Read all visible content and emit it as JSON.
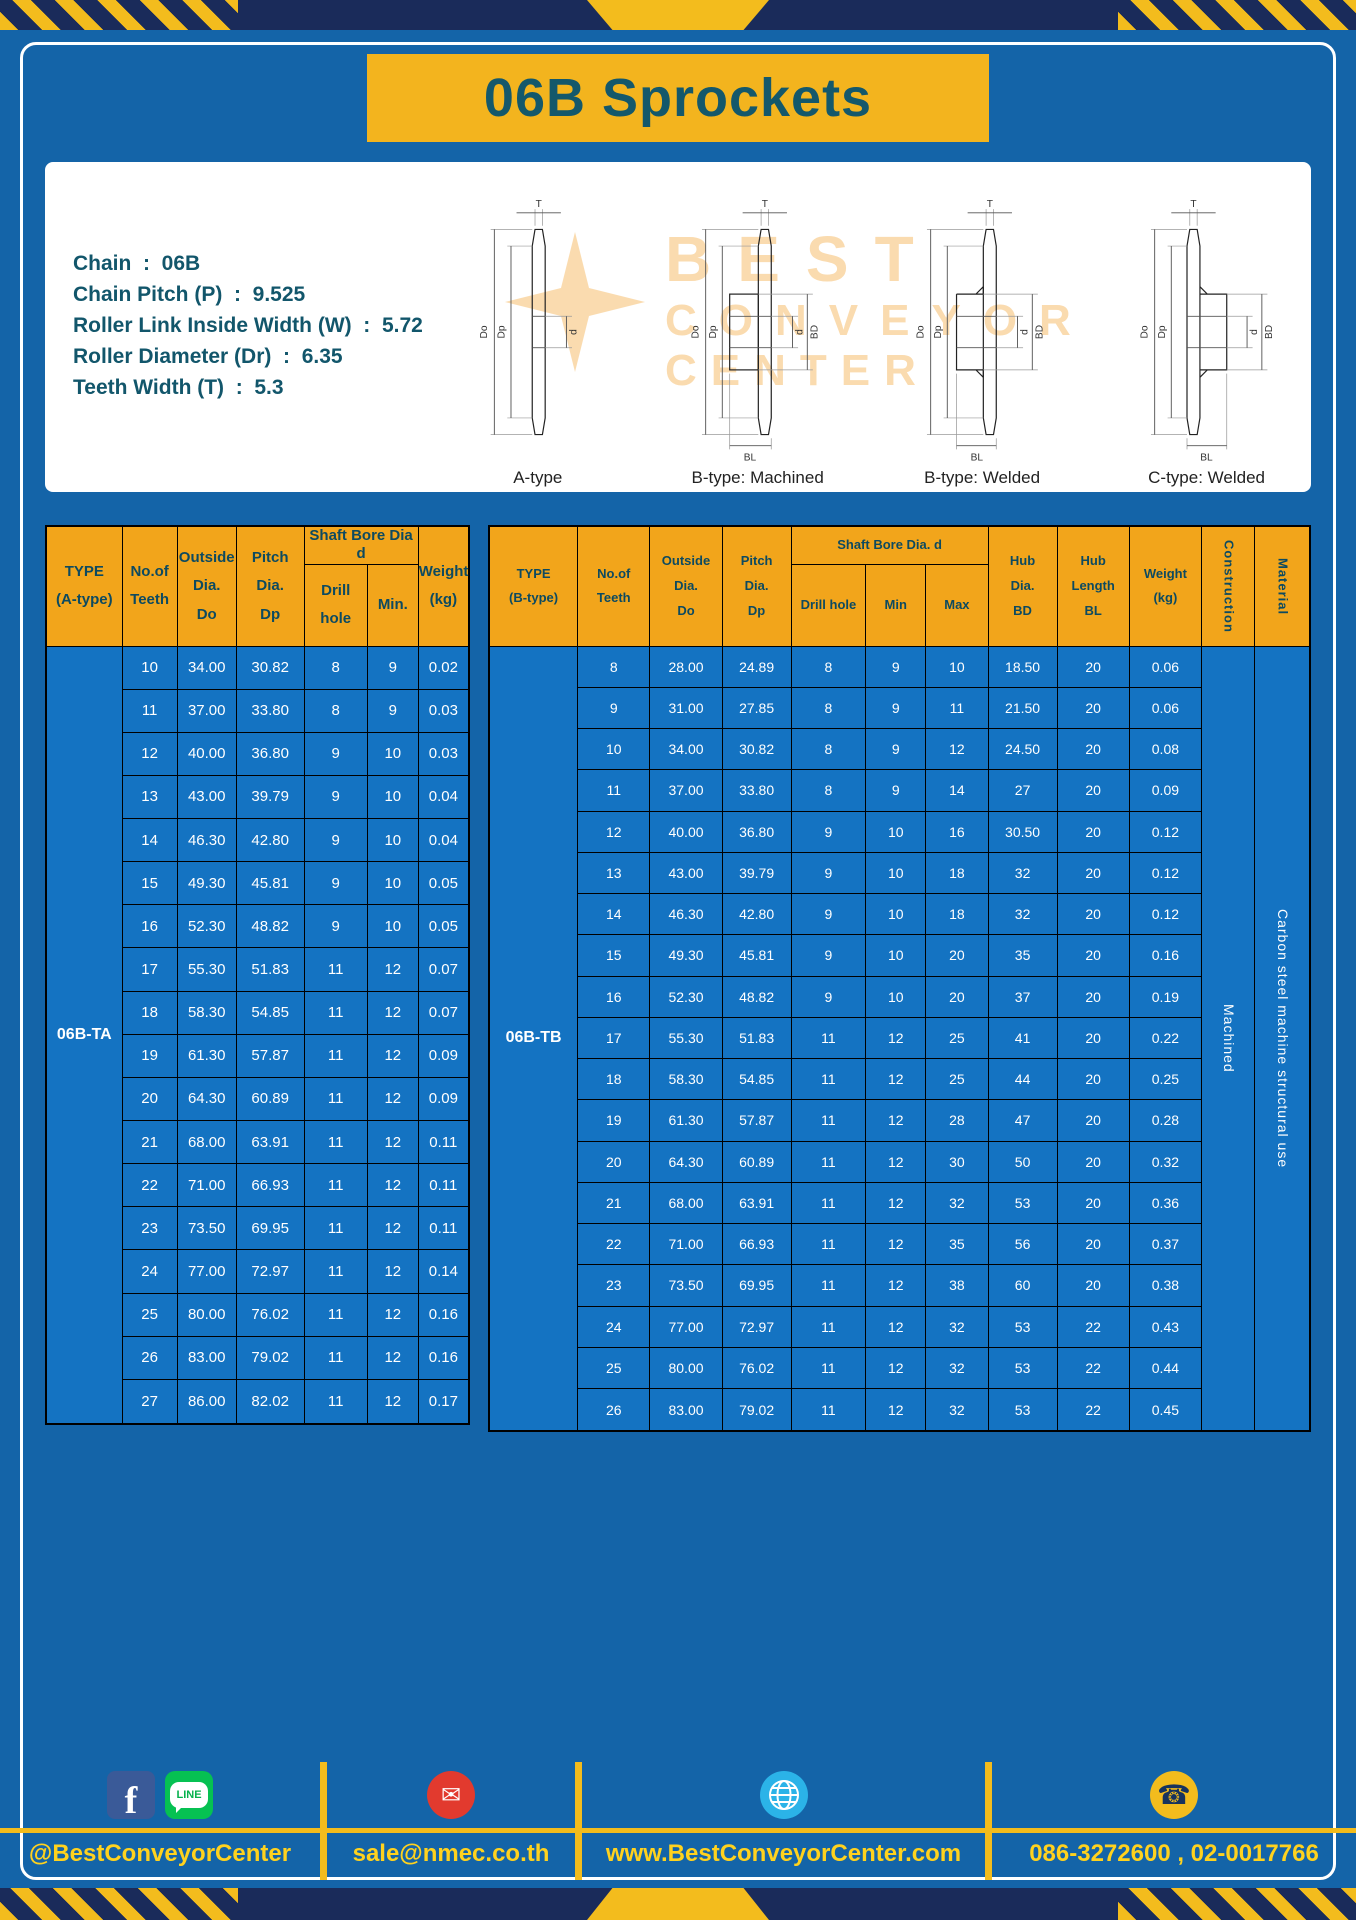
{
  "page": {
    "title": "06B Sprockets"
  },
  "specs": {
    "lines": [
      "Chain  :  06B",
      "Chain Pitch (P)  :  9.525",
      "Roller Link Inside Width (W)  :  5.72",
      "Roller Diameter (Dr)  :  6.35",
      "Teeth Width (T)  :  5.3"
    ]
  },
  "dims": {
    "T": "T",
    "Do": "Do",
    "Dp": "Dp",
    "d": "d",
    "BD": "BD",
    "BL": "BL"
  },
  "diagrams": [
    {
      "label": "A-type"
    },
    {
      "label": "B-type: Machined"
    },
    {
      "label": "B-type: Welded"
    },
    {
      "label": "C-type: Welded"
    }
  ],
  "watermark": {
    "line1": "BEST",
    "line2": "CONVEYOR",
    "line3": "CENTER"
  },
  "tableA": {
    "headers": {
      "type": "TYPE\n(A-type)",
      "teeth": "No.of\nTeeth",
      "outside": "Outside\nDia.\nDo",
      "pitch": "Pitch Dia.\nDp",
      "shaft_group": "Shaft Bore Dia d",
      "drill": "Drill hole",
      "min": "Min.",
      "weight": "Weight\n(kg)"
    },
    "type_value": "06B-TA",
    "rows": [
      [
        "10",
        "34.00",
        "30.82",
        "8",
        "9",
        "0.02"
      ],
      [
        "11",
        "37.00",
        "33.80",
        "8",
        "9",
        "0.03"
      ],
      [
        "12",
        "40.00",
        "36.80",
        "9",
        "10",
        "0.03"
      ],
      [
        "13",
        "43.00",
        "39.79",
        "9",
        "10",
        "0.04"
      ],
      [
        "14",
        "46.30",
        "42.80",
        "9",
        "10",
        "0.04"
      ],
      [
        "15",
        "49.30",
        "45.81",
        "9",
        "10",
        "0.05"
      ],
      [
        "16",
        "52.30",
        "48.82",
        "9",
        "10",
        "0.05"
      ],
      [
        "17",
        "55.30",
        "51.83",
        "11",
        "12",
        "0.07"
      ],
      [
        "18",
        "58.30",
        "54.85",
        "11",
        "12",
        "0.07"
      ],
      [
        "19",
        "61.30",
        "57.87",
        "11",
        "12",
        "0.09"
      ],
      [
        "20",
        "64.30",
        "60.89",
        "11",
        "12",
        "0.09"
      ],
      [
        "21",
        "68.00",
        "63.91",
        "11",
        "12",
        "0.11"
      ],
      [
        "22",
        "71.00",
        "66.93",
        "11",
        "12",
        "0.11"
      ],
      [
        "23",
        "73.50",
        "69.95",
        "11",
        "12",
        "0.11"
      ],
      [
        "24",
        "77.00",
        "72.97",
        "11",
        "12",
        "0.14"
      ],
      [
        "25",
        "80.00",
        "76.02",
        "11",
        "12",
        "0.16"
      ],
      [
        "26",
        "83.00",
        "79.02",
        "11",
        "12",
        "0.16"
      ],
      [
        "27",
        "86.00",
        "82.02",
        "11",
        "12",
        "0.17"
      ]
    ]
  },
  "tableB": {
    "headers": {
      "type": "TYPE\n(B-type)",
      "teeth": "No.of\nTeeth",
      "outside": "Outside\nDia.\nDo",
      "pitch": "Pitch\nDia.\nDp",
      "shaft_group": "Shaft Bore Dia.  d",
      "drill": "Drill hole",
      "min": "Min",
      "max": "Max",
      "hub_dia": "Hub\nDia.\nBD",
      "hub_len": "Hub\nLength\nBL",
      "weight": "Weight\n(kg)",
      "construction": "Construction",
      "material": "Material"
    },
    "type_value": "06B-TB",
    "construction_value": "Machined",
    "material_value": "Carbon steel machine structural use",
    "rows": [
      [
        "8",
        "28.00",
        "24.89",
        "8",
        "9",
        "10",
        "18.50",
        "20",
        "0.06"
      ],
      [
        "9",
        "31.00",
        "27.85",
        "8",
        "9",
        "11",
        "21.50",
        "20",
        "0.06"
      ],
      [
        "10",
        "34.00",
        "30.82",
        "8",
        "9",
        "12",
        "24.50",
        "20",
        "0.08"
      ],
      [
        "11",
        "37.00",
        "33.80",
        "8",
        "9",
        "14",
        "27",
        "20",
        "0.09"
      ],
      [
        "12",
        "40.00",
        "36.80",
        "9",
        "10",
        "16",
        "30.50",
        "20",
        "0.12"
      ],
      [
        "13",
        "43.00",
        "39.79",
        "9",
        "10",
        "18",
        "32",
        "20",
        "0.12"
      ],
      [
        "14",
        "46.30",
        "42.80",
        "9",
        "10",
        "18",
        "32",
        "20",
        "0.12"
      ],
      [
        "15",
        "49.30",
        "45.81",
        "9",
        "10",
        "20",
        "35",
        "20",
        "0.16"
      ],
      [
        "16",
        "52.30",
        "48.82",
        "9",
        "10",
        "20",
        "37",
        "20",
        "0.19"
      ],
      [
        "17",
        "55.30",
        "51.83",
        "11",
        "12",
        "25",
        "41",
        "20",
        "0.22"
      ],
      [
        "18",
        "58.30",
        "54.85",
        "11",
        "12",
        "25",
        "44",
        "20",
        "0.25"
      ],
      [
        "19",
        "61.30",
        "57.87",
        "11",
        "12",
        "28",
        "47",
        "20",
        "0.28"
      ],
      [
        "20",
        "64.30",
        "60.89",
        "11",
        "12",
        "30",
        "50",
        "20",
        "0.32"
      ],
      [
        "21",
        "68.00",
        "63.91",
        "11",
        "12",
        "32",
        "53",
        "20",
        "0.36"
      ],
      [
        "22",
        "71.00",
        "66.93",
        "11",
        "12",
        "35",
        "56",
        "20",
        "0.37"
      ],
      [
        "23",
        "73.50",
        "69.95",
        "11",
        "12",
        "38",
        "60",
        "20",
        "0.38"
      ],
      [
        "24",
        "77.00",
        "72.97",
        "11",
        "12",
        "32",
        "53",
        "22",
        "0.43"
      ],
      [
        "25",
        "80.00",
        "76.02",
        "11",
        "12",
        "32",
        "53",
        "22",
        "0.44"
      ],
      [
        "26",
        "83.00",
        "79.02",
        "11",
        "12",
        "32",
        "53",
        "22",
        "0.45"
      ]
    ]
  },
  "footer": {
    "handle": "@BestConveyorCenter",
    "email": "sale@nmec.co.th",
    "website": "www.BestConveyorCenter.com",
    "phones": "086-3272600 , 02-0017766",
    "facebook_glyph": "f",
    "line_label": "LINE",
    "mail_glyph": "✉",
    "phone_glyph": "☎"
  },
  "colors": {
    "page_blue": "#1464a8",
    "cell_blue": "#1473c2",
    "header_yellow": "#f2a51b",
    "banner_yellow": "#f3b41e",
    "hazard_yellow": "#f3bc1d",
    "footer_yellow": "#ffd21e",
    "title_teal": "#14586b",
    "navy": "#1a2b5a"
  }
}
